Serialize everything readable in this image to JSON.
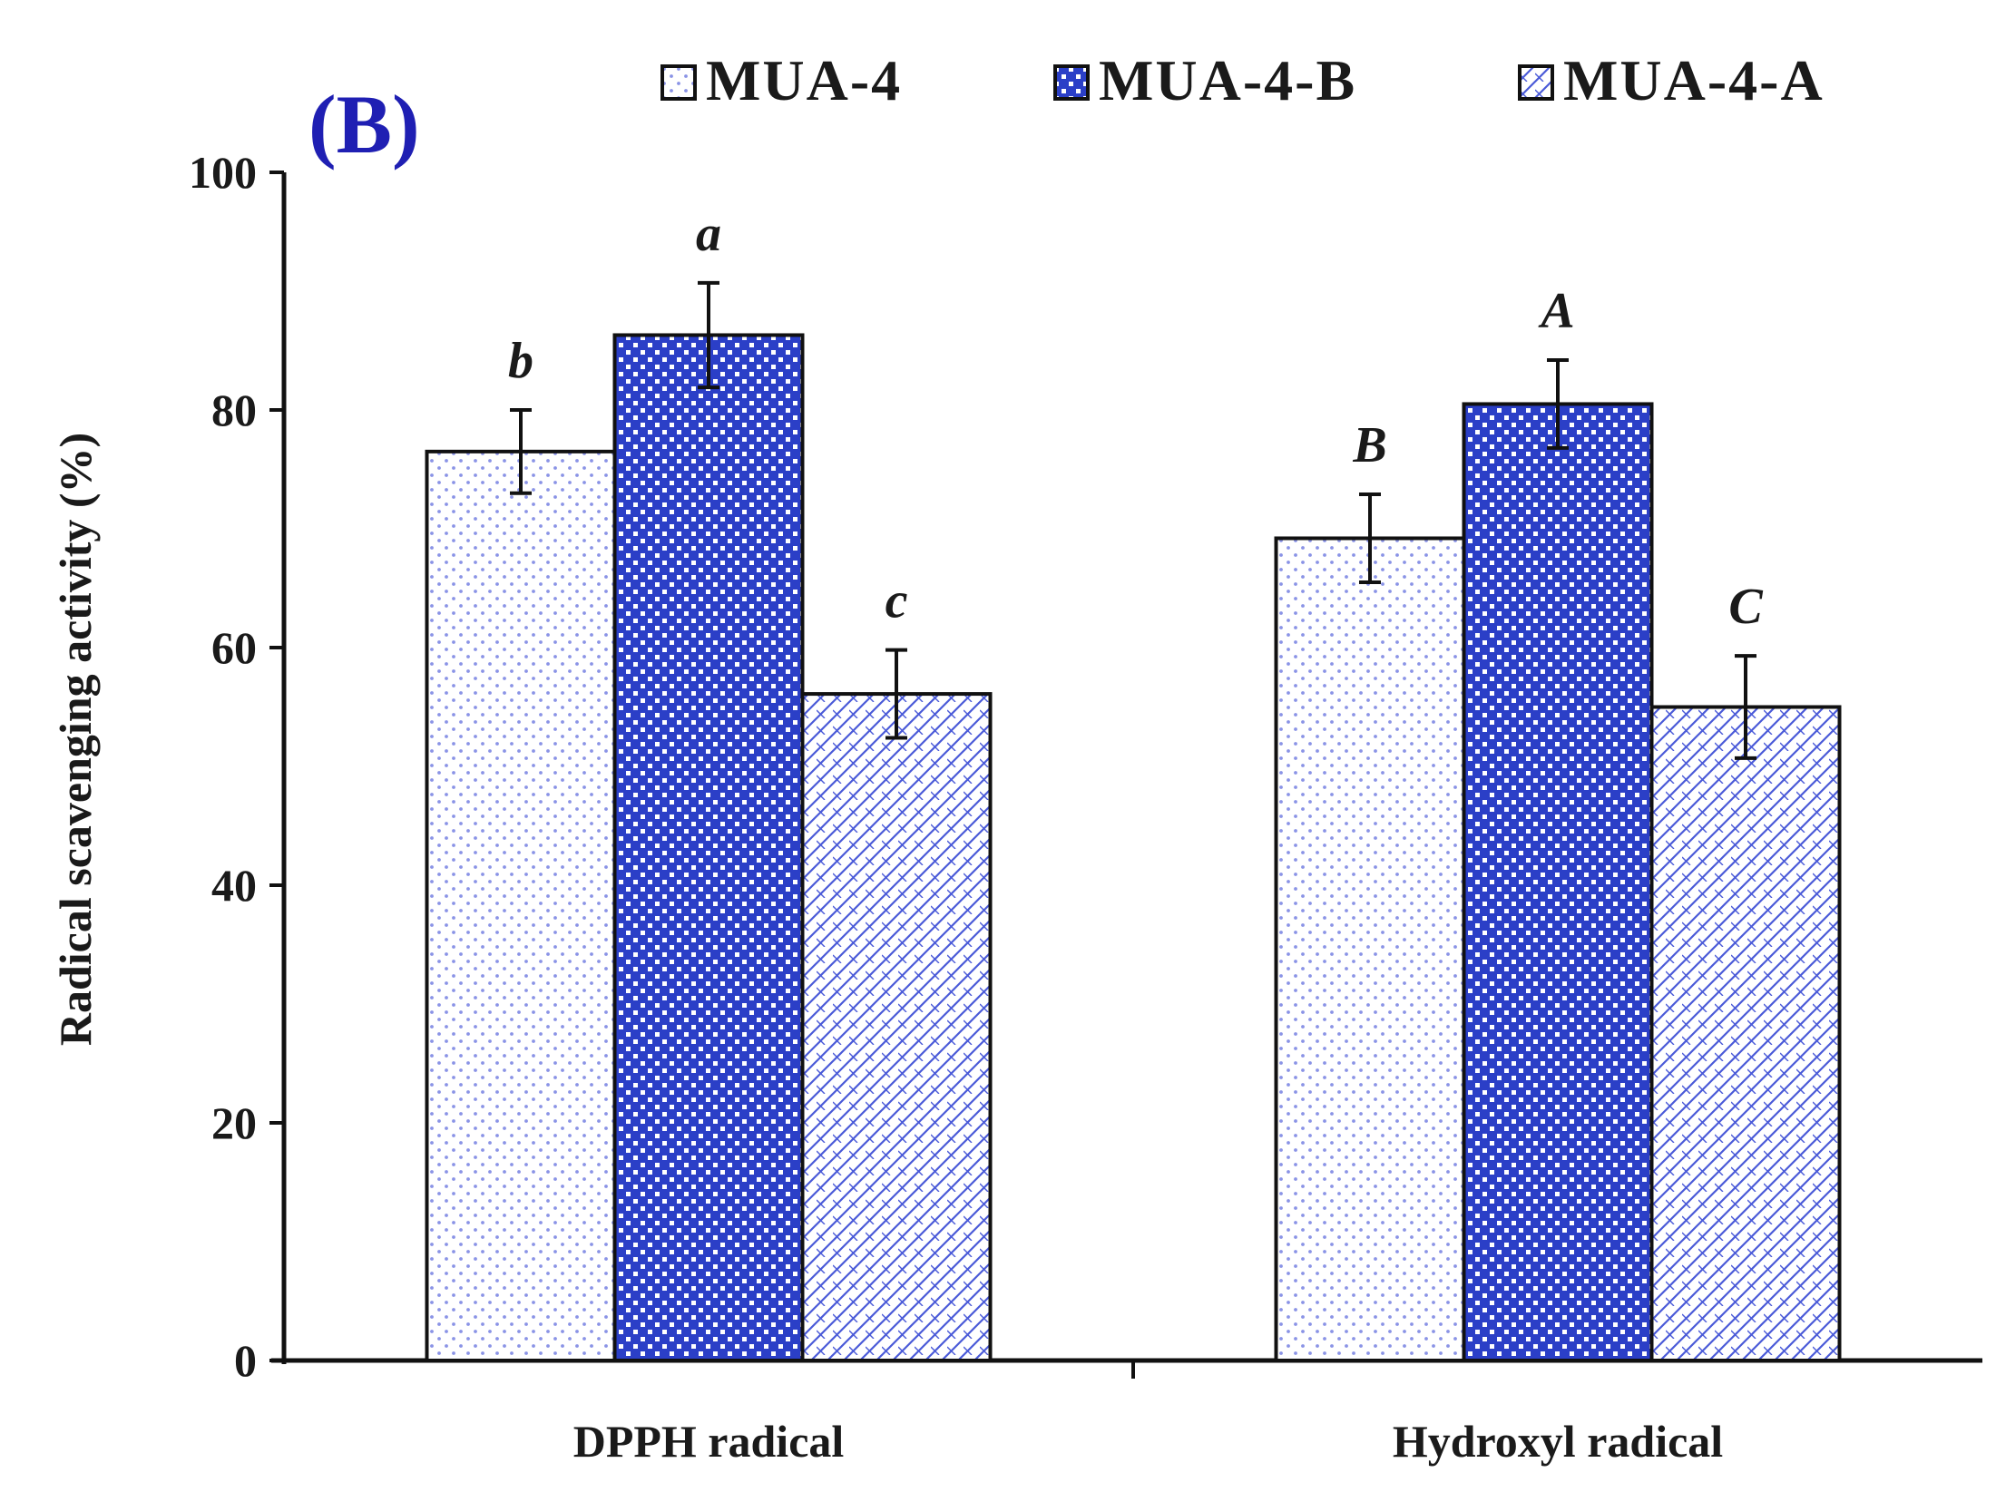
{
  "chart_data": {
    "type": "bar",
    "panel_label": "(B)",
    "title": "",
    "xlabel": "",
    "ylabel": "Radical scavenging activity (%)",
    "ylim": [
      0,
      100
    ],
    "yticks": [
      0,
      20,
      40,
      60,
      80,
      100
    ],
    "grid": false,
    "legend_position": "top",
    "categories": [
      "DPPH radical",
      "Hydroxyl radical"
    ],
    "series": [
      {
        "name": "MUA-4",
        "pattern": "dots",
        "values": [
          76.5,
          69.2
        ],
        "errors": [
          3.5,
          3.7
        ],
        "significance": [
          "b",
          "B"
        ]
      },
      {
        "name": "MUA-4-B",
        "pattern": "checker",
        "values": [
          86.3,
          80.5
        ],
        "errors": [
          4.4,
          3.7
        ],
        "significance": [
          "a",
          "A"
        ]
      },
      {
        "name": "MUA-4-A",
        "pattern": "diagonal-hatch",
        "values": [
          56.1,
          55.0
        ],
        "errors": [
          3.7,
          4.3
        ],
        "significance": [
          "c",
          "C"
        ]
      }
    ],
    "colors": {
      "pattern_blue": "#2b3fc7",
      "dot_blue": "#8a93e6",
      "hatch_blue": "#4a5ad8",
      "panel_label": "#1f1fb3",
      "axis": "#111111"
    }
  }
}
